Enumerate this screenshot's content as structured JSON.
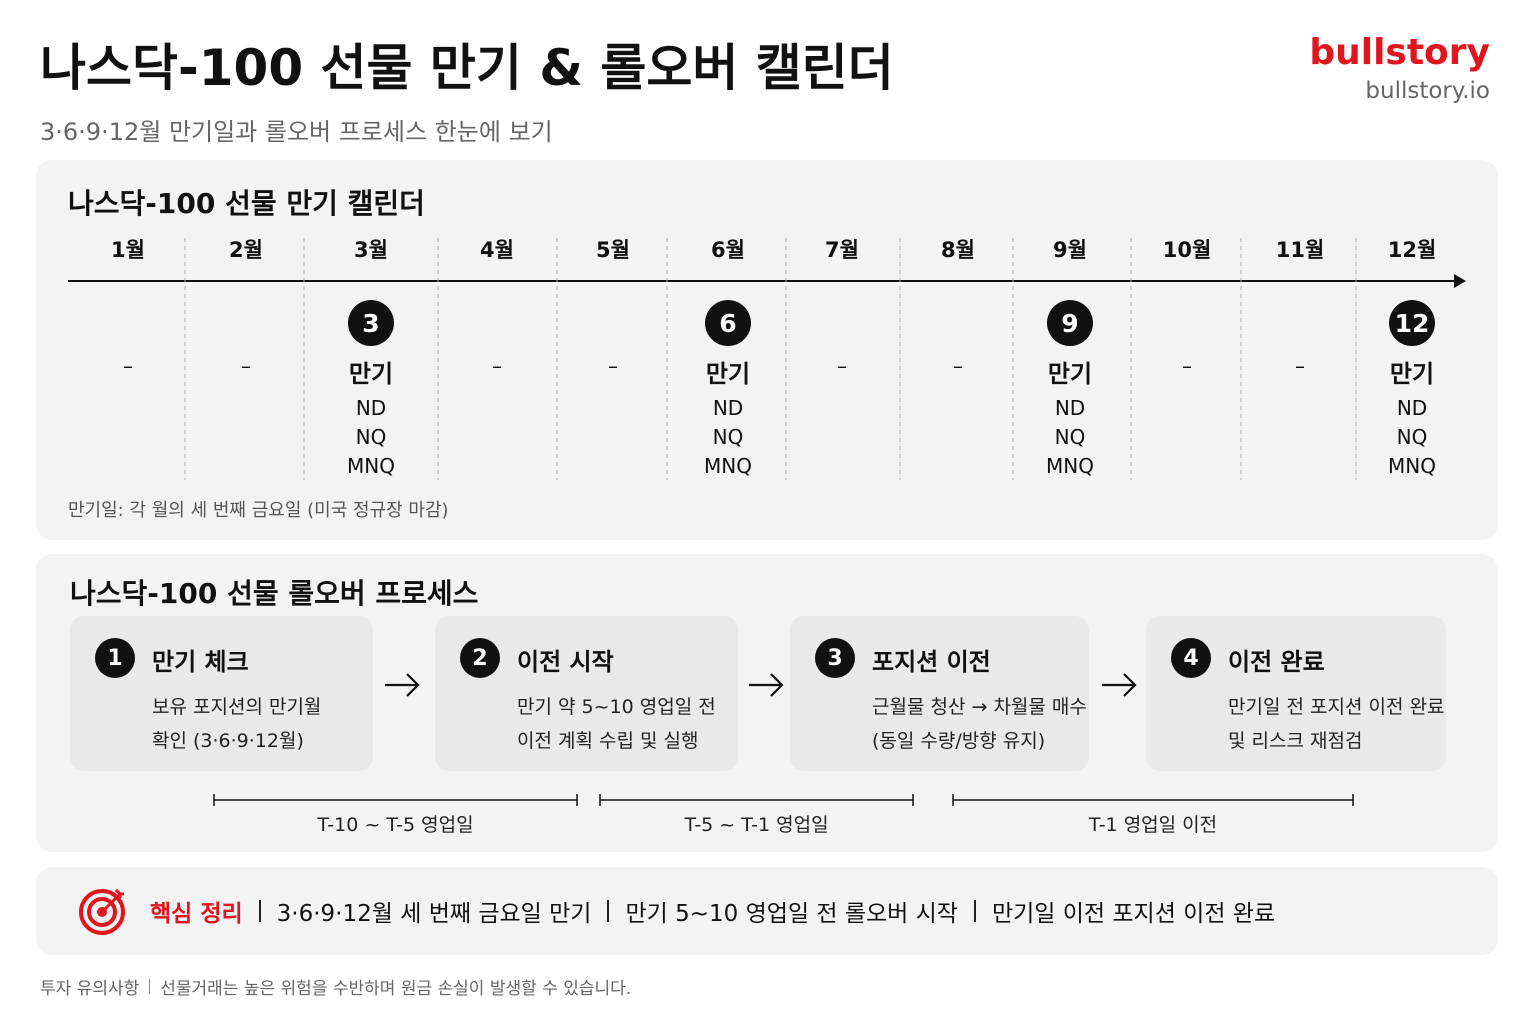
{
  "header": {
    "title": "나스닥-100 선물 만기 & 롤오버 캘린더",
    "subtitle": "3·6·9·12월 만기일과 롤오버 프로세스 한눈에 보기"
  },
  "brand": {
    "name": "bullstory",
    "url": "bullstory.io"
  },
  "calendar": {
    "title": "나스닥-100 선물 만기 캘린더",
    "months": [
      {
        "month": "1월",
        "mark": "–"
      },
      {
        "month": "2월",
        "mark": "–"
      },
      {
        "month": "3월",
        "badge": "3",
        "status": "만기",
        "codes": [
          "ND",
          "NQ",
          "MNQ"
        ]
      },
      {
        "month": "4월",
        "mark": "–"
      },
      {
        "month": "5월",
        "mark": "–"
      },
      {
        "month": "6월",
        "badge": "6",
        "status": "만기",
        "codes": [
          "ND",
          "NQ",
          "MNQ"
        ]
      },
      {
        "month": "7월",
        "mark": "–"
      },
      {
        "month": "8월",
        "mark": "–"
      },
      {
        "month": "9월",
        "badge": "9",
        "status": "만기",
        "codes": [
          "ND",
          "NQ",
          "MNQ"
        ]
      },
      {
        "month": "10월",
        "mark": "–"
      },
      {
        "month": "11월",
        "mark": "–"
      },
      {
        "month": "12월",
        "badge": "12",
        "status": "만기",
        "codes": [
          "ND",
          "NQ",
          "MNQ"
        ]
      }
    ],
    "note": "만기일: 각 월의 세 번째 금요일 (미국 정규장 마감)"
  },
  "process": {
    "title": "나스닥-100 선물 롤오버 프로세스",
    "steps": [
      {
        "number": "1",
        "title": "만기 체크",
        "lines": [
          "보유 포지션의 만기월",
          "확인 (3·6·9·12월)"
        ]
      },
      {
        "number": "2",
        "title": "이전 시작",
        "lines": [
          "만기 약 5~10 영업일 전",
          "이전 계획 수립 및 실행"
        ]
      },
      {
        "number": "3",
        "title": "포지션 이전",
        "lines": [
          "근월물 청산 → 차월물 매수",
          "(동일 수량/방향 유지)"
        ]
      },
      {
        "number": "4",
        "title": "이전 완료",
        "lines": [
          "만기일 전 포지션 이전 완료",
          "및 리스크 재점검"
        ]
      }
    ],
    "ranges": [
      "T-10 ~ T-5 영업일",
      "T-5 ~ T-1 영업일",
      "T-1 영업일 이전"
    ]
  },
  "summary": {
    "label": "핵심 정리",
    "items": [
      "3·6·9·12월 세 번째 금요일 만기",
      "만기 5~10 영업일 전 롤오버 시작",
      "만기일 이전 포지션 이전 완료"
    ]
  },
  "footer": {
    "label": "투자 유의사항",
    "text": "선물거래는 높은 위험을 수반하며 원금 손실이 발생할 수 있습니다."
  }
}
